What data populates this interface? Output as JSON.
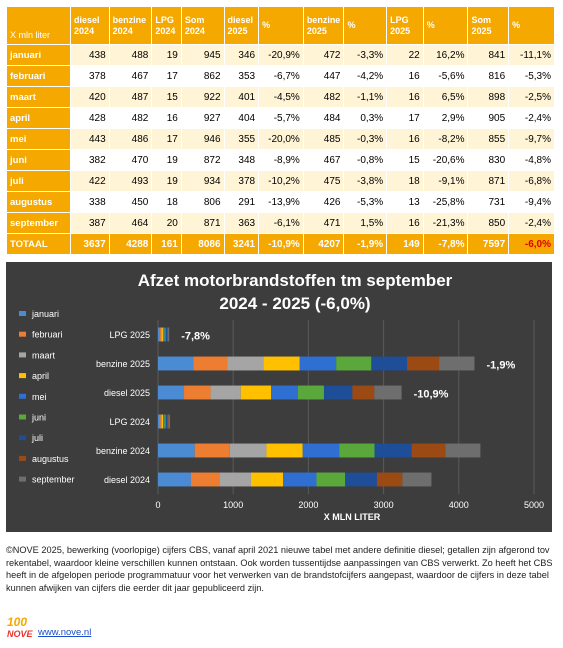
{
  "table": {
    "corner_label": "X mln liter",
    "headers": [
      [
        "diesel",
        "2024"
      ],
      [
        "benzine",
        "2024"
      ],
      [
        "LPG",
        "2024"
      ],
      [
        "Som",
        "2024"
      ],
      [
        "diesel",
        "2025"
      ],
      [
        "%",
        ""
      ],
      [
        "benzine",
        "2025"
      ],
      [
        "%",
        ""
      ],
      [
        "LPG",
        "2025"
      ],
      [
        "%",
        ""
      ],
      [
        "Som",
        "2025"
      ],
      [
        "%",
        ""
      ]
    ],
    "rows": [
      {
        "month": "januari",
        "cells": [
          "438",
          "488",
          "19",
          "945",
          "346",
          "-20,9%",
          "472",
          "-3,3%",
          "22",
          "16,2%",
          "841",
          "-11,1%"
        ]
      },
      {
        "month": "februari",
        "cells": [
          "378",
          "467",
          "17",
          "862",
          "353",
          "-6,7%",
          "447",
          "-4,2%",
          "16",
          "-5,6%",
          "816",
          "-5,3%"
        ]
      },
      {
        "month": "maart",
        "cells": [
          "420",
          "487",
          "15",
          "922",
          "401",
          "-4,5%",
          "482",
          "-1,1%",
          "16",
          "6,5%",
          "898",
          "-2,5%"
        ]
      },
      {
        "month": "april",
        "cells": [
          "428",
          "482",
          "16",
          "927",
          "404",
          "-5,7%",
          "484",
          "0,3%",
          "17",
          "2,9%",
          "905",
          "-2,4%"
        ]
      },
      {
        "month": "mei",
        "cells": [
          "443",
          "486",
          "17",
          "946",
          "355",
          "-20,0%",
          "485",
          "-0,3%",
          "16",
          "-8,2%",
          "855",
          "-9,7%"
        ]
      },
      {
        "month": "juni",
        "cells": [
          "382",
          "470",
          "19",
          "872",
          "348",
          "-8,9%",
          "467",
          "-0,8%",
          "15",
          "-20,6%",
          "830",
          "-4,8%"
        ]
      },
      {
        "month": "juli",
        "cells": [
          "422",
          "493",
          "19",
          "934",
          "378",
          "-10,2%",
          "475",
          "-3,8%",
          "18",
          "-9,1%",
          "871",
          "-6,8%"
        ]
      },
      {
        "month": "augustus",
        "cells": [
          "338",
          "450",
          "18",
          "806",
          "291",
          "-13,9%",
          "426",
          "-5,3%",
          "13",
          "-25,8%",
          "731",
          "-9,4%"
        ]
      },
      {
        "month": "september",
        "cells": [
          "387",
          "464",
          "20",
          "871",
          "363",
          "-6,1%",
          "471",
          "1,5%",
          "16",
          "-21,3%",
          "850",
          "-2,4%"
        ]
      }
    ],
    "total": {
      "month": "TOTAAL",
      "cells": [
        "3637",
        "4288",
        "161",
        "8086",
        "3241",
        "-10,9%",
        "4207",
        "-1,9%",
        "149",
        "-7,8%",
        "7597",
        "-6,0%"
      ]
    }
  },
  "chart_data": {
    "type": "bar",
    "orientation": "horizontal",
    "stacked": true,
    "title_line1": "Afzet motorbrandstoffen tm september",
    "title_line2": "2024 - 2025 (-6,0%)",
    "xlabel": "X MLN LITER",
    "ylabel": "",
    "xlim": [
      0,
      5000
    ],
    "xticks": [
      "0",
      "1000",
      "2000",
      "3000",
      "4000",
      "5000"
    ],
    "grid": true,
    "legend_position": "left",
    "background": "#3d3d3d",
    "categories": [
      "LPG 2025",
      "benzine 2025",
      "diesel 2025",
      "LPG 2024",
      "benzine 2024",
      "diesel 2024"
    ],
    "bar_labels": [
      "-7,8%",
      "-1,9%",
      "-10,9%",
      "",
      "",
      ""
    ],
    "series": [
      {
        "name": "januari",
        "color": "#4a8bd4",
        "values": [
          22,
          472,
          346,
          19,
          488,
          438
        ]
      },
      {
        "name": "februari",
        "color": "#ed7d31",
        "values": [
          16,
          447,
          353,
          17,
          467,
          378
        ]
      },
      {
        "name": "maart",
        "color": "#a5a5a5",
        "values": [
          16,
          482,
          401,
          15,
          487,
          420
        ]
      },
      {
        "name": "april",
        "color": "#ffc000",
        "values": [
          17,
          484,
          404,
          16,
          482,
          428
        ]
      },
      {
        "name": "mei",
        "color": "#2e6fd1",
        "values": [
          16,
          485,
          355,
          17,
          486,
          443
        ]
      },
      {
        "name": "juni",
        "color": "#5aa83c",
        "values": [
          15,
          467,
          348,
          19,
          470,
          382
        ]
      },
      {
        "name": "juli",
        "color": "#1f4e99",
        "values": [
          18,
          475,
          378,
          19,
          493,
          422
        ]
      },
      {
        "name": "augustus",
        "color": "#9c4a14",
        "values": [
          13,
          426,
          291,
          18,
          450,
          338
        ]
      },
      {
        "name": "september",
        "color": "#6e6e6e",
        "values": [
          16,
          471,
          363,
          20,
          464,
          387
        ]
      }
    ]
  },
  "footer": {
    "note": "©NOVE 2025, bewerking (voorlopige) cijfers CBS, vanaf april 2021 nieuwe tabel met andere definitie diesel; getallen zijn afgerond tov rekentabel, waardoor kleine verschillen kunnen ontstaan. Ook worden tussentijdse aanpassingen van CBS verwerkt. Zo heeft het CBS heeft in de afgelopen periode programmatuur voor het verwerken van de brandstofcijfers aangepast, waardoor de cijfers in deze tabel kunnen afwijken van cijfers die eerder dit jaar gepubliceerd zijn.",
    "logo_text": "NOVE",
    "logo_number": "100",
    "link": "www.nove.nl"
  }
}
